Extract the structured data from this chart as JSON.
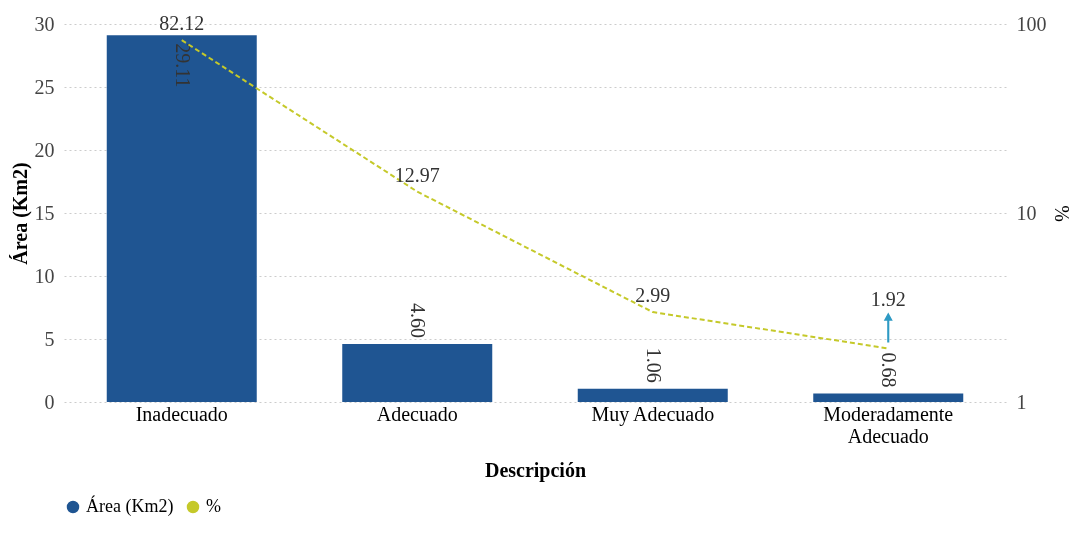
{
  "chart_data": {
    "type": "bar",
    "xlabel": "Descripción",
    "ylabel": "Área (Km2)",
    "y2label": "%",
    "categories": [
      "Inadecuado",
      "Adecuado",
      "Muy Adecuado",
      "Moderadamente Adecuado"
    ],
    "series": [
      {
        "name": "Área (Km2)",
        "color": "#1f5592",
        "values": [
          29.11,
          4.6,
          1.06,
          0.68
        ],
        "value_labels": [
          "29.11",
          "4.60",
          "1.06",
          "0.68"
        ]
      },
      {
        "name": "%",
        "type": "line",
        "axis": "y2",
        "color": "#c5c92a",
        "line_style": "dashed",
        "values": [
          82.12,
          12.97,
          2.99,
          1.92
        ],
        "value_labels": [
          "82.12",
          "12.97",
          "2.99",
          "1.92"
        ]
      }
    ],
    "ylim": [
      0,
      30
    ],
    "yticks": [
      0,
      5,
      10,
      15,
      20,
      25,
      30
    ],
    "y2lim": [
      1,
      100
    ],
    "y2ticks": [
      1,
      10,
      100
    ],
    "log": "y2",
    "grid": "y",
    "legend": "bottom"
  }
}
